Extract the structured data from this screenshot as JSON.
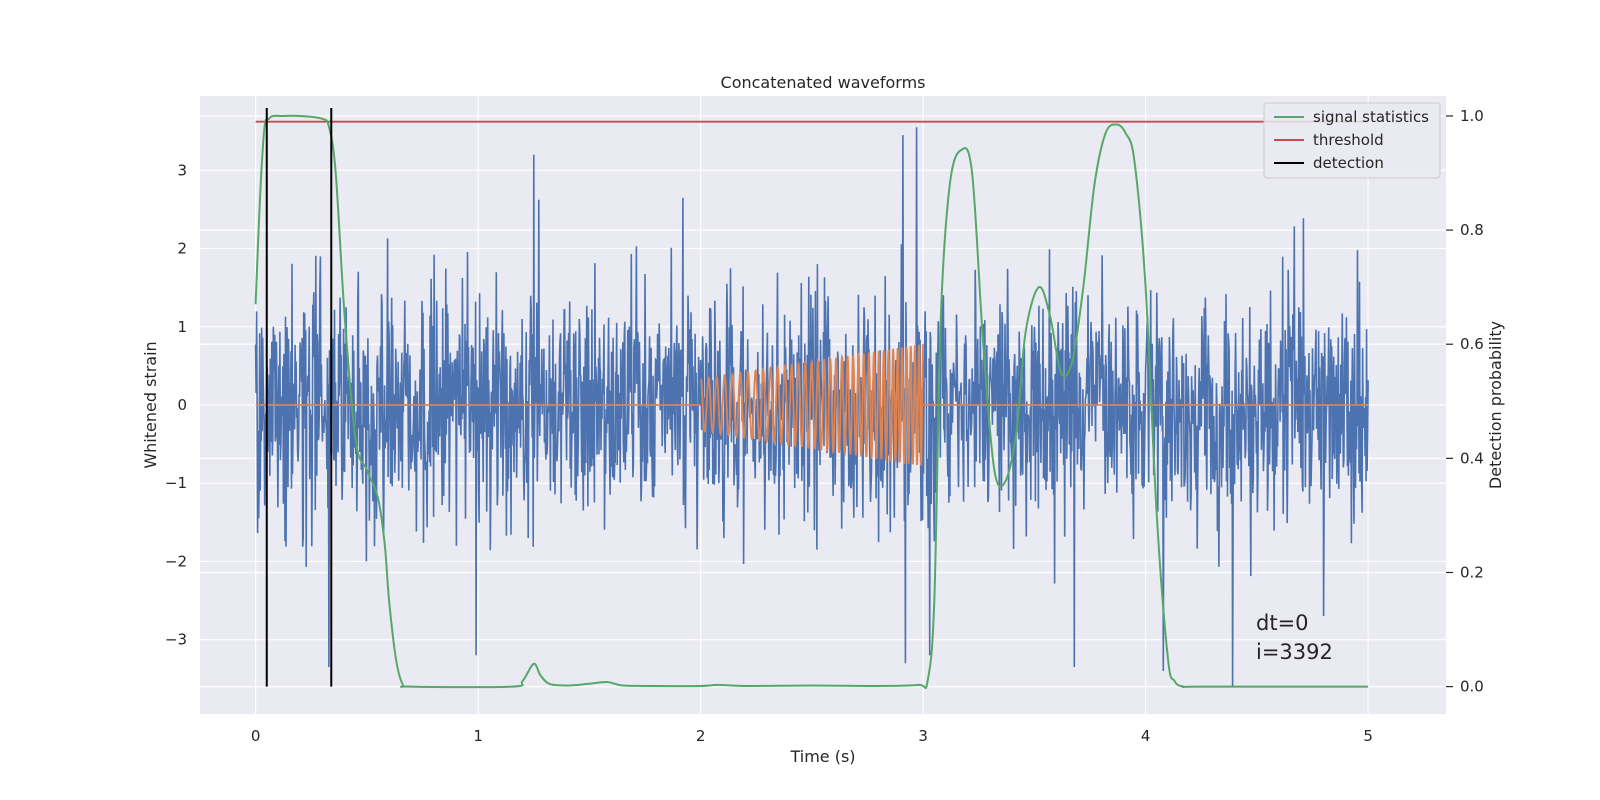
{
  "chart_data": {
    "type": "line",
    "title": "Concatenated waveforms",
    "xlabel": "Time (s)",
    "ylabel": "Whitened strain",
    "ylabel_right": "Detection probability",
    "xlim": [
      -0.25,
      5.35
    ],
    "ylim": [
      -3.95,
      3.95
    ],
    "ylim_right": [
      -0.048,
      1.035
    ],
    "xticks": [
      0,
      1,
      2,
      3,
      4,
      5
    ],
    "xtick_labels": [
      "0",
      "1",
      "2",
      "3",
      "4",
      "5"
    ],
    "yticks": [
      -3,
      -2,
      -1,
      0,
      1,
      2,
      3
    ],
    "ytick_labels": [
      "−3",
      "−2",
      "−1",
      "0",
      "1",
      "2",
      "3"
    ],
    "yticks_right": [
      0.0,
      0.2,
      0.4,
      0.6,
      0.8,
      1.0
    ],
    "ytick_labels_right": [
      "0.0",
      "0.2",
      "0.4",
      "0.6",
      "0.8",
      "1.0"
    ],
    "grid": true,
    "legend_position": "top-right",
    "colors": {
      "background": "#eaeaf2",
      "grid": "#ffffff",
      "strain": "#4c72b0",
      "template": "#dd8452",
      "statistics": "#55a868",
      "threshold": "#c44e52",
      "detection": "#000000"
    },
    "series": [
      {
        "name": "",
        "axis": "left",
        "kind": "noise",
        "x_range": [
          0,
          5
        ],
        "sigma": 0.75,
        "spikes": [
          {
            "x": 2.97,
            "y": 3.55
          },
          {
            "x": 2.91,
            "y": 3.45
          },
          {
            "x": 1.25,
            "y": 3.2
          },
          {
            "x": 2.92,
            "y": -3.3
          },
          {
            "x": 0.33,
            "y": -3.35
          },
          {
            "x": 3.03,
            "y": -3.2
          },
          {
            "x": 0.99,
            "y": -3.2
          },
          {
            "x": 4.39,
            "y": -3.6
          },
          {
            "x": 4.08,
            "y": -3.4
          },
          {
            "x": 3.68,
            "y": -3.35
          },
          {
            "x": 1.92,
            "y": 2.65
          }
        ]
      },
      {
        "name": "",
        "axis": "left",
        "kind": "chirp",
        "x_range": [
          2.0,
          3.0
        ],
        "amplitude_start": 0.33,
        "amplitude_end": 0.78,
        "cycles": 37
      },
      {
        "name": "signal statistics",
        "axis": "right",
        "x": [
          0.0,
          0.02,
          0.04,
          0.06,
          0.08,
          0.12,
          0.2,
          0.3,
          0.33,
          0.36,
          0.4,
          0.45,
          0.5,
          0.55,
          0.58,
          0.6,
          0.63,
          0.66,
          0.7,
          1.15,
          1.2,
          1.25,
          1.28,
          1.32,
          1.4,
          1.5,
          1.58,
          1.65,
          1.8,
          2.0,
          2.08,
          2.2,
          2.5,
          2.8,
          2.98,
          3.02,
          3.05,
          3.08,
          3.12,
          3.17,
          3.22,
          3.27,
          3.32,
          3.37,
          3.42,
          3.46,
          3.52,
          3.57,
          3.62,
          3.67,
          3.72,
          3.77,
          3.82,
          3.87,
          3.91,
          3.95,
          4.0,
          4.05,
          4.1,
          4.13,
          4.17,
          4.25,
          5.0
        ],
        "y": [
          0.67,
          0.86,
          0.98,
          0.995,
          1.0,
          1.0,
          1.0,
          0.995,
          0.98,
          0.9,
          0.65,
          0.43,
          0.38,
          0.33,
          0.25,
          0.15,
          0.05,
          0.005,
          0.0,
          0.0,
          0.01,
          0.04,
          0.02,
          0.005,
          0.002,
          0.005,
          0.008,
          0.002,
          0.001,
          0.001,
          0.003,
          0.001,
          0.002,
          0.001,
          0.003,
          0.01,
          0.15,
          0.65,
          0.88,
          0.94,
          0.9,
          0.6,
          0.38,
          0.36,
          0.45,
          0.62,
          0.7,
          0.65,
          0.55,
          0.57,
          0.7,
          0.88,
          0.97,
          0.985,
          0.97,
          0.92,
          0.7,
          0.3,
          0.05,
          0.01,
          0.0,
          0.0,
          0.0
        ]
      },
      {
        "name": "threshold",
        "axis": "right",
        "x": [
          0,
          5
        ],
        "y": [
          0.99,
          0.99
        ]
      },
      {
        "name": "detection",
        "axis": "right",
        "kind": "vlines",
        "x": [
          0.05,
          0.34
        ],
        "y_range": [
          0.0,
          1.0
        ]
      }
    ],
    "annotations": [
      "dt=0",
      "i=3392"
    ]
  }
}
